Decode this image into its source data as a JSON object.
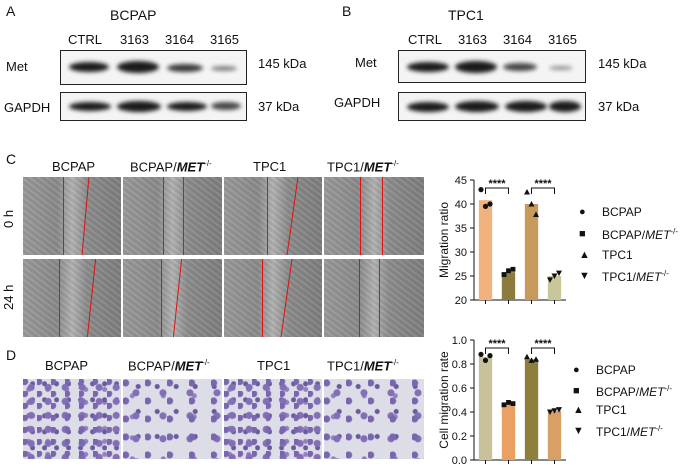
{
  "panels": {
    "a": {
      "letter": "A",
      "cell_line": "BCPAP",
      "lanes": [
        "CTRL",
        "3163",
        "3164",
        "3165"
      ],
      "rows": [
        {
          "protein": "Met",
          "kda": "145 kDa"
        },
        {
          "protein": "GAPDH",
          "kda": "37 kDa"
        }
      ]
    },
    "b": {
      "letter": "B",
      "cell_line": "TPC1",
      "lanes": [
        "CTRL",
        "3163",
        "3164",
        "3165"
      ],
      "rows": [
        {
          "protein": "Met",
          "kda": "145 kDa"
        },
        {
          "protein": "GAPDH",
          "kda": "37 kDa"
        }
      ]
    },
    "c": {
      "letter": "C",
      "columns": [
        "BCPAP",
        "BCPAP/",
        "TPC1",
        "TPC1/"
      ],
      "gene": "MET",
      "superscript": "-/-",
      "times": [
        "0 h",
        "24 h"
      ]
    },
    "d": {
      "letter": "D",
      "columns": [
        "BCPAP",
        "BCPAP/",
        "TPC1",
        "TPC1/"
      ],
      "gene": "MET",
      "superscript": "-/-"
    }
  },
  "legend": {
    "items": [
      {
        "label": "BCPAP",
        "gene": "",
        "sup": "",
        "symbol": "●"
      },
      {
        "label": "BCPAP/",
        "gene": "MET",
        "sup": "-/-",
        "symbol": "■"
      },
      {
        "label": "TPC1",
        "gene": "",
        "sup": "",
        "symbol": "▲"
      },
      {
        "label": "TPC1/",
        "gene": "MET",
        "sup": "-/-",
        "symbol": "▼"
      }
    ]
  },
  "colors": {
    "bcpap": "#f2b27e",
    "bcpap_met": "#8c7a3e",
    "tpc1": "#c69a5a",
    "tpc1_met": "#c7c79a",
    "bcpap_d": "#c8c29a",
    "bcpap_met_d": "#e9a062",
    "tpc1_d": "#8f7f3c",
    "tpc1_met_d": "#d8a066"
  },
  "chart_data": [
    {
      "type": "bar",
      "title": "",
      "xlabel": "",
      "ylabel": "Migration ratio",
      "ylim": [
        20,
        45
      ],
      "yticks": [
        20,
        25,
        30,
        35,
        40,
        45
      ],
      "categories": [
        "BCPAP",
        "BCPAP/MET-/-",
        "TPC1",
        "TPC1/MET-/-"
      ],
      "values": [
        40.8,
        25.8,
        40.0,
        25.0
      ],
      "points": [
        [
          43.0,
          39.5,
          40.0
        ],
        [
          25.3,
          26.1,
          26.4
        ],
        [
          42.5,
          40.0,
          37.8
        ],
        [
          24.2,
          25.0,
          25.6
        ]
      ],
      "significance": [
        {
          "from": 0,
          "to": 1,
          "label": "****"
        },
        {
          "from": 2,
          "to": 3,
          "label": "****"
        }
      ]
    },
    {
      "type": "bar",
      "title": "",
      "xlabel": "",
      "ylabel": "Cell migration rate",
      "ylim": [
        0.0,
        1.0
      ],
      "yticks": [
        0.0,
        0.2,
        0.4,
        0.6,
        0.8,
        1.0
      ],
      "categories": [
        "BCPAP",
        "BCPAP/MET-/-",
        "TPC1",
        "TPC1/MET-/-"
      ],
      "values": [
        0.86,
        0.47,
        0.84,
        0.41
      ],
      "points": [
        [
          0.88,
          0.83,
          0.87
        ],
        [
          0.46,
          0.48,
          0.47
        ],
        [
          0.86,
          0.83,
          0.84
        ],
        [
          0.4,
          0.41,
          0.42
        ]
      ],
      "significance": [
        {
          "from": 0,
          "to": 1,
          "label": "****"
        },
        {
          "from": 2,
          "to": 3,
          "label": "****"
        }
      ]
    }
  ]
}
